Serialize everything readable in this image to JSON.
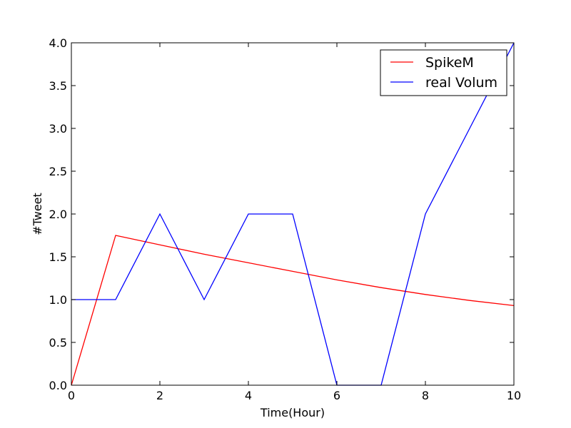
{
  "chart_data": {
    "type": "line",
    "xlabel": "Time(Hour)",
    "ylabel": "#Tweet",
    "xlim": [
      0,
      10
    ],
    "ylim": [
      0,
      4.0
    ],
    "x_ticks": [
      0,
      2,
      4,
      6,
      8,
      10
    ],
    "x_tick_labels": [
      "0",
      "2",
      "4",
      "6",
      "8",
      "10"
    ],
    "y_ticks": [
      0,
      0.5,
      1.0,
      1.5,
      2.0,
      2.5,
      3.0,
      3.5,
      4.0
    ],
    "y_tick_labels": [
      "0.0",
      "0.5",
      "1.0",
      "1.5",
      "2.0",
      "2.5",
      "3.0",
      "3.5",
      "4.0"
    ],
    "grid": false,
    "legend_position": "top-right",
    "series": [
      {
        "name": "SpikeM",
        "color": "#ff0000",
        "x": [
          0,
          1,
          2,
          3,
          4,
          5,
          6,
          7,
          8,
          9,
          10
        ],
        "y": [
          0,
          1.75,
          1.64,
          1.53,
          1.43,
          1.33,
          1.23,
          1.14,
          1.06,
          0.99,
          0.93
        ]
      },
      {
        "name": "real Volum",
        "color": "#0000ff",
        "x": [
          0,
          1,
          2,
          3,
          4,
          5,
          6,
          7,
          8,
          9,
          10
        ],
        "y": [
          1,
          1,
          2,
          1,
          2,
          2,
          0,
          0,
          2,
          3,
          4
        ]
      }
    ]
  }
}
